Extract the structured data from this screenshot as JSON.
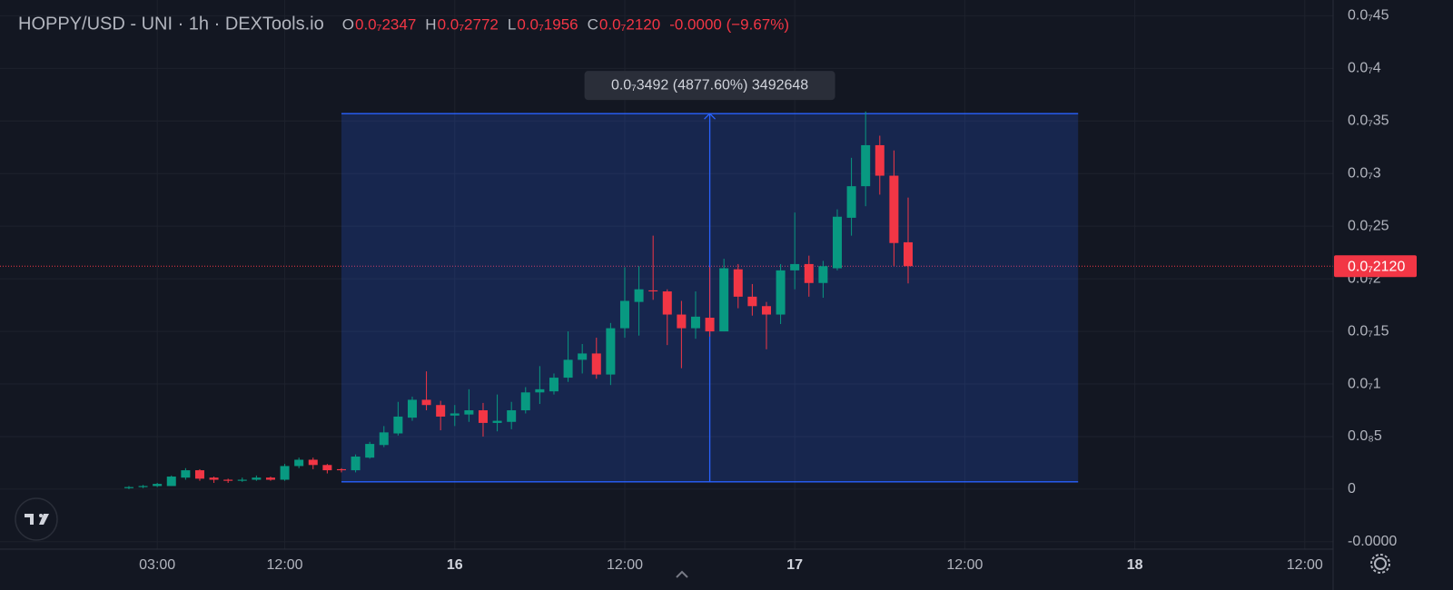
{
  "chart_data": {
    "type": "candlestick",
    "title": "HOPPY/USD - UNI · 1h · DEXTools.io",
    "ohlc_header": [
      {
        "key": "O",
        "value": "0.0₇2347"
      },
      {
        "key": "H",
        "value": "0.0₇2772"
      },
      {
        "key": "L",
        "value": "0.0₇1956"
      },
      {
        "key": "C",
        "value": "0.0₇2120"
      }
    ],
    "change": "-0.0000 (−9.67%)",
    "up_color": "#089981",
    "down_color": "#f23645",
    "open": [
      1e-10,
      2e-10,
      3e-10,
      3e-10,
      1.1e-09,
      1.8e-09,
      1.1e-09,
      9e-10,
      8e-10,
      9e-10,
      1.1e-09,
      9e-10,
      2.2e-09,
      2.8e-09,
      2.3e-09,
      1.9e-09,
      1.8e-09,
      3e-09,
      4.2e-09,
      5.3e-09,
      6.8e-09,
      8.5e-09,
      8e-09,
      7e-09,
      7.1e-09,
      7.5e-09,
      6.3e-09,
      6.4e-09,
      7.5e-09,
      9.2e-09,
      9.3e-09,
      1.06e-08,
      1.23e-08,
      1.29e-08,
      1.09e-08,
      1.53e-08,
      1.78e-08,
      1.89e-08,
      1.88e-08,
      1.66e-08,
      1.53e-08,
      1.63e-08,
      1.5e-08,
      2.09e-08,
      1.83e-08,
      1.74e-08,
      1.66e-08,
      2.08e-08,
      2.14e-08,
      1.96e-08,
      2.1e-08,
      2.58e-08,
      2.88e-08,
      3.27e-08,
      2.98e-08,
      2.347e-08
    ],
    "high": [
      3e-10,
      4e-10,
      6e-10,
      1.3e-09,
      2e-09,
      1.9e-09,
      1.2e-09,
      1e-09,
      1.1e-09,
      1.3e-09,
      1.2e-09,
      2.4e-09,
      3e-09,
      3e-09,
      2.4e-09,
      2e-09,
      3.3e-09,
      4.5e-09,
      6e-09,
      8.3e-09,
      8.8e-09,
      1.12e-08,
      8.4e-09,
      8e-09,
      9.5e-09,
      8.2e-09,
      9e-09,
      8.3e-09,
      9.7e-09,
      1.17e-08,
      1.1e-08,
      1.5e-08,
      1.38e-08,
      1.44e-08,
      1.58e-08,
      2.11e-08,
      2.12e-08,
      2.41e-08,
      1.9e-08,
      1.79e-08,
      1.88e-08,
      2.11e-08,
      2.19e-08,
      2.14e-08,
      1.95e-08,
      1.78e-08,
      2.14e-08,
      2.63e-08,
      2.22e-08,
      2.17e-08,
      2.66e-08,
      3.15e-08,
      3.59e-08,
      3.36e-08,
      3.22e-08,
      2.772e-08
    ],
    "low": [
      0,
      1e-10,
      2e-10,
      3e-10,
      9e-10,
      8e-10,
      6e-10,
      6e-10,
      7e-10,
      8e-10,
      8e-10,
      8e-10,
      2e-09,
      1.9e-09,
      1.5e-09,
      1.6e-09,
      1.6e-09,
      2.9e-09,
      4e-09,
      5.1e-09,
      6.5e-09,
      7.5e-09,
      5.6e-09,
      6e-09,
      6.4e-09,
      5e-09,
      5.5e-09,
      5.7e-09,
      7.2e-09,
      8.1e-09,
      9e-09,
      1.02e-08,
      1.1e-08,
      1.05e-08,
      9.9e-09,
      1.44e-08,
      1.46e-08,
      1.8e-08,
      1.37e-08,
      1.15e-08,
      1.43e-08,
      1.45e-08,
      1.5e-08,
      1.72e-08,
      1.65e-08,
      1.33e-08,
      1.57e-08,
      1.9e-08,
      1.83e-08,
      1.82e-08,
      2.08e-08,
      2.41e-08,
      2.69e-08,
      2.8e-08,
      2.12e-08,
      1.956e-08
    ],
    "close": [
      2e-10,
      3e-10,
      5e-10,
      1.2e-09,
      1.8e-09,
      1e-09,
      9e-10,
      8e-10,
      9e-10,
      1.1e-09,
      9e-10,
      2.2e-09,
      2.8e-09,
      2.3e-09,
      1.8e-09,
      1.8e-09,
      3.1e-09,
      4.3e-09,
      5.4e-09,
      6.9e-09,
      8.5e-09,
      8e-09,
      6.9e-09,
      7.2e-09,
      7.5e-09,
      6.3e-09,
      6.5e-09,
      7.5e-09,
      9.2e-09,
      9.5e-09,
      1.06e-08,
      1.23e-08,
      1.29e-08,
      1.09e-08,
      1.53e-08,
      1.79e-08,
      1.9e-08,
      1.88e-08,
      1.66e-08,
      1.53e-08,
      1.64e-08,
      1.5e-08,
      2.1e-08,
      1.83e-08,
      1.74e-08,
      1.66e-08,
      2.08e-08,
      2.14e-08,
      1.96e-08,
      2.12e-08,
      2.59e-08,
      2.88e-08,
      3.27e-08,
      2.98e-08,
      2.34e-08,
      2.12e-08
    ],
    "xlim": [
      -9.1,
      85
    ],
    "xticks": [
      {
        "value": 2,
        "label": "03:00"
      },
      {
        "value": 11,
        "label": "12:00"
      },
      {
        "value": 23,
        "label": "16"
      },
      {
        "value": 35,
        "label": "12:00"
      },
      {
        "value": 47,
        "label": "17"
      },
      {
        "value": 59,
        "label": "12:00"
      },
      {
        "value": 71,
        "label": "18"
      },
      {
        "value": 83,
        "label": "12:00"
      }
    ],
    "ylim": [
      -5.7e-09,
      4.65e-08
    ],
    "yticks": [
      {
        "value": 4.5e-08,
        "label": "0.0₇45"
      },
      {
        "value": 4e-08,
        "label": "0.0₇4"
      },
      {
        "value": 3.5e-08,
        "label": "0.0₇35"
      },
      {
        "value": 3e-08,
        "label": "0.0₇3"
      },
      {
        "value": 2.5e-08,
        "label": "0.0₇25"
      },
      {
        "value": 2e-08,
        "label": "0.0₇2"
      },
      {
        "value": 1.5e-08,
        "label": "0.0₇15"
      },
      {
        "value": 1e-08,
        "label": "0.0₇1"
      },
      {
        "value": 5e-09,
        "label": "0.0₈5"
      },
      0,
      {
        "value": -5e-09,
        "label": "-0.0000"
      }
    ],
    "grid": true,
    "price_line": {
      "value": 2.12e-08,
      "label": "0.0₇2120"
    },
    "measure": {
      "x": [
        15,
        67
      ],
      "range": [
        7e-10,
        3.57e-08
      ],
      "label": "0.0₇3492 (4877.60%) 3492648"
    }
  }
}
